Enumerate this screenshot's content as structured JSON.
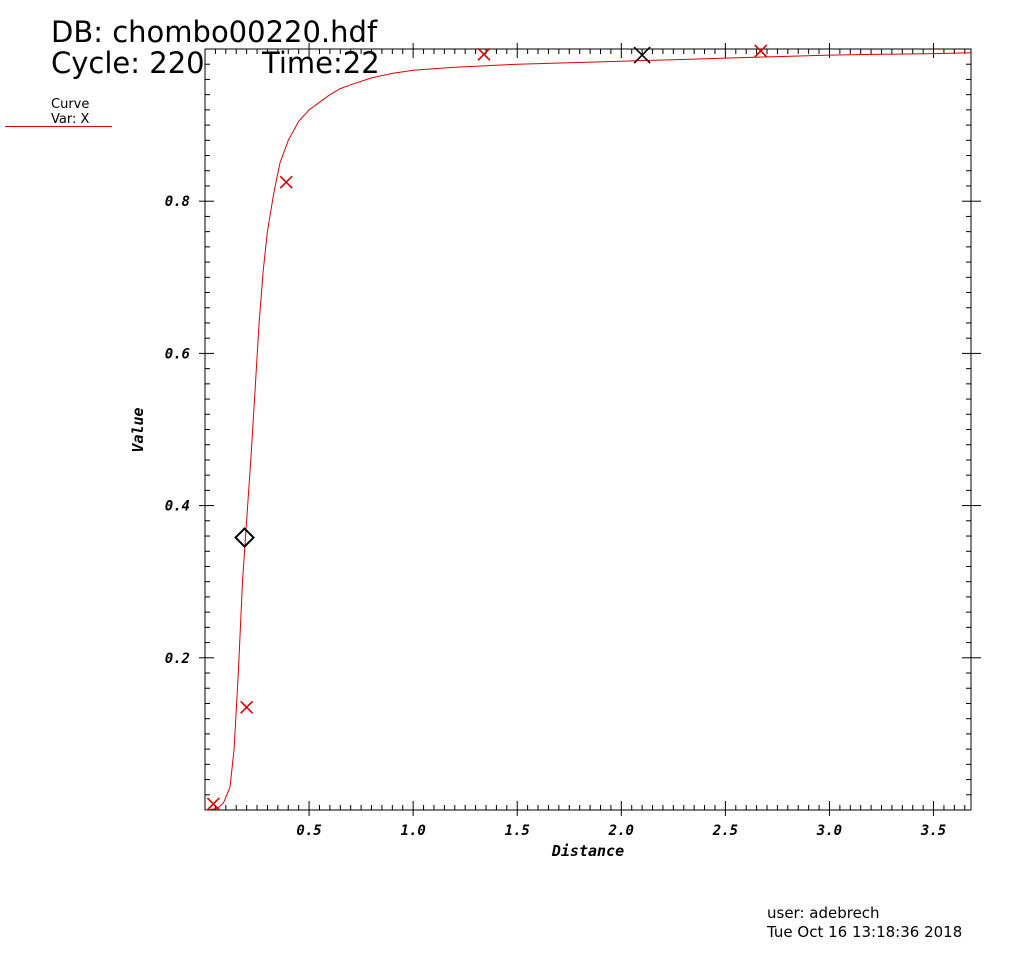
{
  "header": {
    "db_line": "DB: chombo00220.hdf",
    "cycle_line": "Cycle: 220",
    "time_line": "Time:22"
  },
  "legend": {
    "title": "Curve",
    "var": "Var: X",
    "color": "#e00000"
  },
  "footer": {
    "user": "user: adebrech",
    "date": "Tue Oct 16 13:18:36 2018"
  },
  "chart_data": {
    "type": "line",
    "xlabel": "Distance",
    "ylabel": "Value",
    "xlim": [
      0,
      3.68
    ],
    "ylim": [
      0,
      1.0
    ],
    "xticks": [
      {
        "v": 0.5,
        "label": "0.5"
      },
      {
        "v": 1.0,
        "label": "1.0"
      },
      {
        "v": 1.5,
        "label": "1.5"
      },
      {
        "v": 2.0,
        "label": "2.0"
      },
      {
        "v": 2.5,
        "label": "2.5"
      },
      {
        "v": 3.0,
        "label": "3.0"
      },
      {
        "v": 3.5,
        "label": "3.5"
      }
    ],
    "yticks": [
      {
        "v": 0.2,
        "label": "0.2"
      },
      {
        "v": 0.4,
        "label": "0.4"
      },
      {
        "v": 0.6,
        "label": "0.6"
      },
      {
        "v": 0.8,
        "label": "0.8"
      }
    ],
    "grid": false,
    "series": [
      {
        "color": "#e00000",
        "x": [
          0.0,
          0.06,
          0.09,
          0.12,
          0.14,
          0.16,
          0.18,
          0.2,
          0.22,
          0.24,
          0.26,
          0.28,
          0.3,
          0.33,
          0.36,
          0.4,
          0.45,
          0.5,
          0.55,
          0.6,
          0.65,
          0.7,
          0.8,
          0.9,
          1.0,
          1.1,
          1.2,
          1.35,
          1.5,
          1.75,
          2.0,
          2.25,
          2.5,
          2.75,
          3.0,
          3.25,
          3.5,
          3.68
        ],
        "y": [
          0.0,
          0.002,
          0.01,
          0.03,
          0.08,
          0.18,
          0.3,
          0.38,
          0.46,
          0.55,
          0.64,
          0.71,
          0.76,
          0.81,
          0.85,
          0.88,
          0.905,
          0.92,
          0.93,
          0.94,
          0.948,
          0.953,
          0.962,
          0.968,
          0.972,
          0.974,
          0.976,
          0.978,
          0.98,
          0.982,
          0.984,
          0.986,
          0.988,
          0.99,
          0.992,
          0.993,
          0.994,
          0.995
        ]
      }
    ],
    "markers": [
      {
        "x": 0.04,
        "y": 0.008,
        "shape": "x",
        "color": "#e00000"
      },
      {
        "x": 0.2,
        "y": 0.135,
        "shape": "x",
        "color": "#e00000"
      },
      {
        "x": 0.39,
        "y": 0.825,
        "shape": "x",
        "color": "#e00000"
      },
      {
        "x": 1.34,
        "y": 0.993,
        "shape": "x",
        "color": "#e00000"
      },
      {
        "x": 2.67,
        "y": 1.0,
        "shape": "x",
        "color": "#e00000"
      },
      {
        "x": 2.1,
        "y": 0.992,
        "shape": "x",
        "color": "#000000"
      },
      {
        "x": 0.19,
        "y": 0.358,
        "shape": "diamond",
        "color": "#000000"
      }
    ]
  }
}
